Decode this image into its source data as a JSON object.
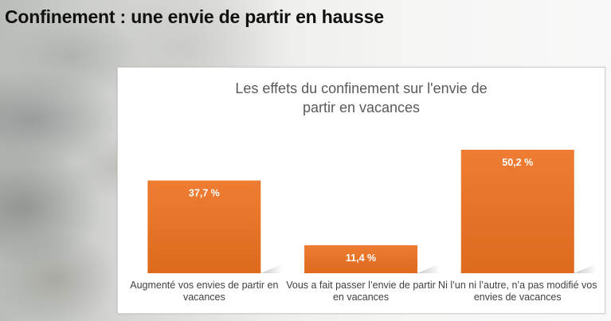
{
  "page": {
    "title": "Confinement : une envie de partir en hausse"
  },
  "chart_data": {
    "type": "bar",
    "title": "Les effets du confinement sur l'envie de partir en vacances",
    "categories": [
      "Augmenté vos envies de partir en vacances",
      "Vous a fait passer l’envie de partir en vacances",
      "Ni l’un ni l’autre, n’a pas modifié vos envies de vacances"
    ],
    "values": [
      37.7,
      11.4,
      50.2
    ],
    "value_labels": [
      "37,7 %",
      "11,4 %",
      "50,2 %"
    ],
    "ylim": [
      0,
      50.2
    ],
    "grid": false,
    "legend": "none",
    "colors": {
      "bar_top": "#ee7d33",
      "bar_bottom": "#dd6a1d",
      "data_label": "#ffffff"
    }
  }
}
